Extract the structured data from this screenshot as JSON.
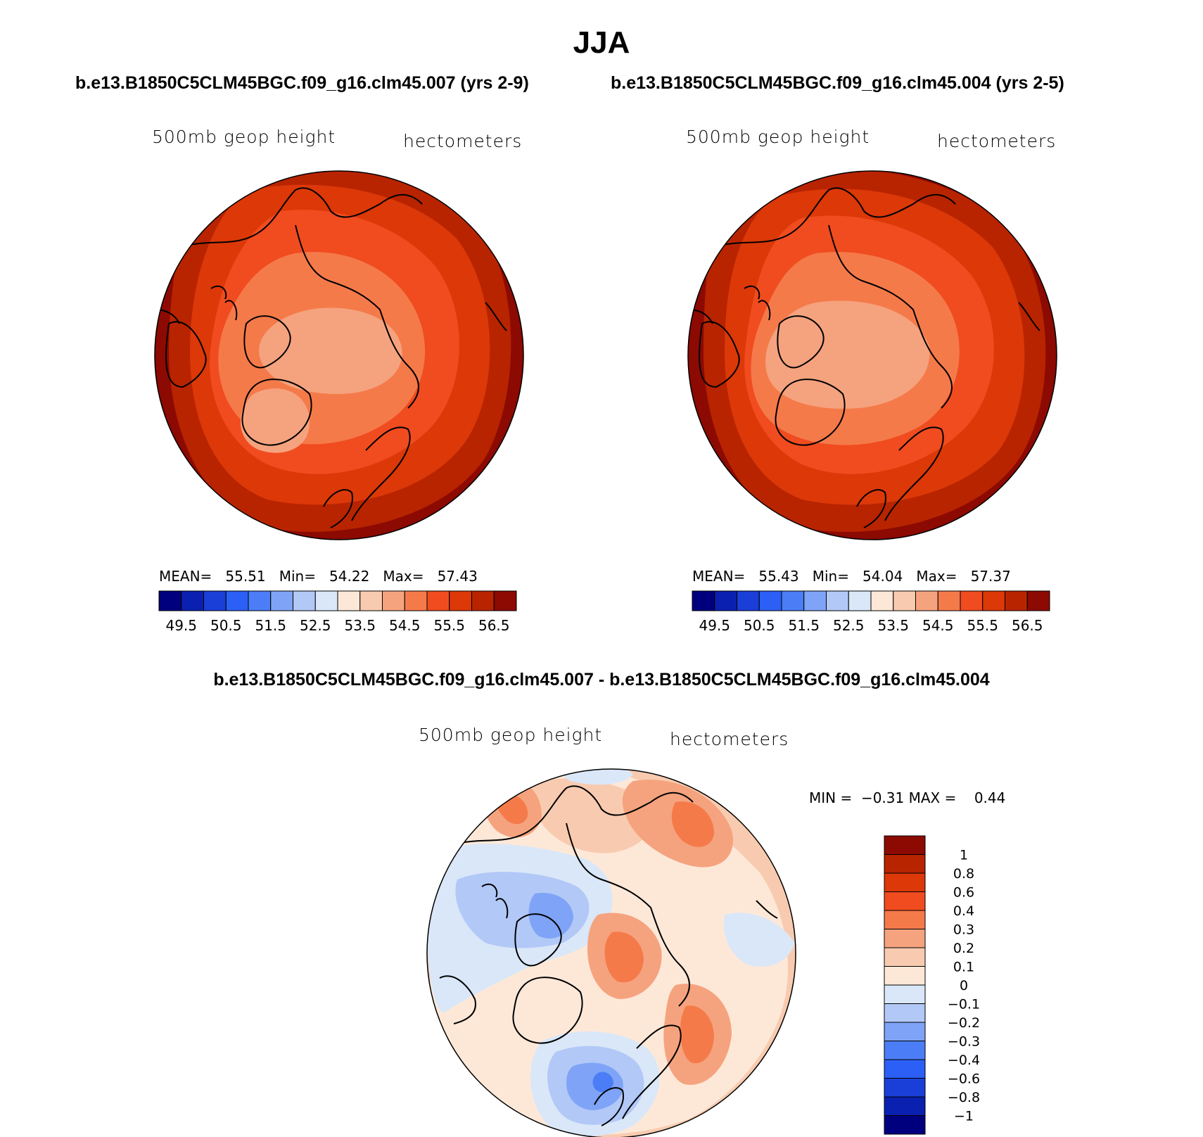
{
  "title": "JJA",
  "panels": [
    {
      "case_title": "b.e13.B1850C5CLM45BGC.f09_g16.clm45.007 (yrs 2-9)",
      "left_label": "500mb geop height",
      "right_label": "hectometers",
      "stats": {
        "mean_label": "MEAN=",
        "mean": "55.51",
        "min_label": "Min=",
        "min": "54.22",
        "max_label": "Max=",
        "max": "57.43"
      }
    },
    {
      "case_title": "b.e13.B1850C5CLM45BGC.f09_g16.clm45.004 (yrs 2-5)",
      "left_label": "500mb geop height",
      "right_label": "hectometers",
      "stats": {
        "mean_label": "MEAN=",
        "mean": "55.43",
        "min_label": "Min=",
        "min": "54.04",
        "max_label": "Max=",
        "max": "57.37"
      }
    }
  ],
  "diff": {
    "title": "b.e13.B1850C5CLM45BGC.f09_g16.clm45.007 - b.e13.B1850C5CLM45BGC.f09_g16.clm45.004",
    "left_label": "500mb geop height",
    "right_label": "hectometers",
    "min_label": "MIN =",
    "min": "−0.31",
    "max_label": "MAX =",
    "max": "0.44"
  },
  "colorbar_top": {
    "colors": [
      "#00007f",
      "#0a20b0",
      "#1a3fd8",
      "#2b5ff5",
      "#4b7ef6",
      "#7fa4f7",
      "#b2c8f7",
      "#d9e7f8",
      "#fde8d8",
      "#f8cbb0",
      "#f5a37e",
      "#f57a4a",
      "#f04c20",
      "#dc3808",
      "#b82400",
      "#8c0a02"
    ],
    "tick_labels": [
      "49.5",
      "50.5",
      "51.5",
      "52.5",
      "53.5",
      "54.5",
      "55.5",
      "56.5"
    ]
  },
  "colorbar_diff": {
    "colors": [
      "#8c0a02",
      "#b82400",
      "#dc3808",
      "#f04c20",
      "#f57a4a",
      "#f5a37e",
      "#f8cbb0",
      "#fde8d8",
      "#d9e7f8",
      "#b2c8f7",
      "#7fa4f7",
      "#4b7ef6",
      "#2b5ff5",
      "#1a3fd8",
      "#0a20b0",
      "#00007f"
    ],
    "tick_labels": [
      "1",
      "0.8",
      "0.6",
      "0.4",
      "0.3",
      "0.2",
      "0.1",
      "0",
      "−0.1",
      "−0.2",
      "−0.3",
      "−0.4",
      "−0.6",
      "−0.8",
      "−1"
    ]
  },
  "colors": {
    "top_outer": "#8c0a02",
    "top_band2": "#b82400",
    "top_band3": "#dc3808",
    "top_band4": "#f04c20",
    "top_band5": "#f57a4a",
    "top_band6": "#f5a37e",
    "diff_base": "#f8cbb0",
    "diff_light": "#fde8d8",
    "diff_neg1": "#d9e7f8",
    "diff_neg2": "#b2c8f7",
    "diff_neg3": "#7fa4f7",
    "diff_pos3": "#f57a4a",
    "diff_pos2": "#f5a37e"
  }
}
